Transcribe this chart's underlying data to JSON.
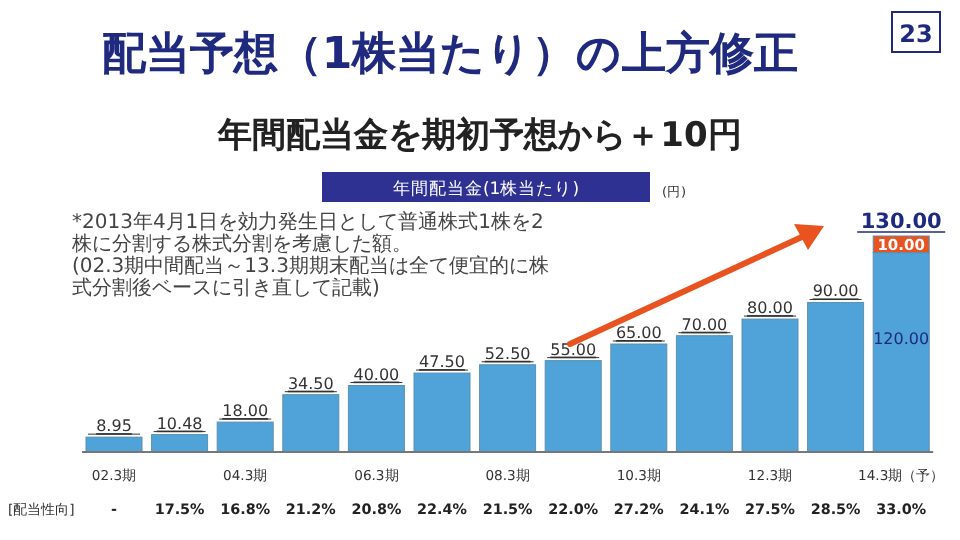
{
  "chart_data": {
    "type": "bar",
    "stacked": true,
    "title": "配当予想（1株当たり）の上方修正",
    "subtitle": "年間配当金を期初予想から＋10円",
    "ylabel": "(円)",
    "categories": [
      "02.3期",
      null,
      "04.3期",
      null,
      "06.3期",
      null,
      "08.3期",
      null,
      "10.3期",
      null,
      "12.3期",
      null,
      "14.3期（予）"
    ],
    "series": [
      {
        "color": "#4fa3d9",
        "values": [
          8.95,
          10.48,
          18,
          34.5,
          40,
          47.5,
          52.5,
          55,
          65,
          70,
          80,
          90,
          120
        ],
        "value_labels": [
          "8.95",
          "10.48",
          "18.00",
          "34.50",
          "40.00",
          "47.50",
          "52.50",
          "55.00",
          "65.00",
          "70.00",
          "80.00",
          "90.00",
          "120.00"
        ]
      },
      {
        "color": "#e8531f",
        "values": [
          null,
          null,
          null,
          null,
          null,
          null,
          null,
          null,
          null,
          null,
          null,
          null,
          10
        ],
        "value_labels": [
          null,
          null,
          null,
          null,
          null,
          null,
          null,
          null,
          null,
          null,
          null,
          null,
          "10.00"
        ]
      }
    ],
    "totals": [
      null,
      null,
      null,
      null,
      null,
      null,
      null,
      null,
      null,
      null,
      null,
      null,
      "130.00"
    ],
    "annotations": [
      "23",
      "年間配当金(1株当たり)",
      "*2013年4月1日を効力発生日として普通株式1株を2株に分割する株式分割を考慮した額。",
      "(02.3期中間配当～13.3期期末配当は全て便宜的に株式分割後ベースに引き直して記載)",
      "[配当性向]",
      "-",
      "17.5%",
      "16.8%",
      "21.2%",
      "20.8%",
      "22.4%",
      "21.5%",
      "22.0%",
      "27.2%",
      "24.1%",
      "27.5%",
      "28.5%",
      "33.0%"
    ]
  }
}
